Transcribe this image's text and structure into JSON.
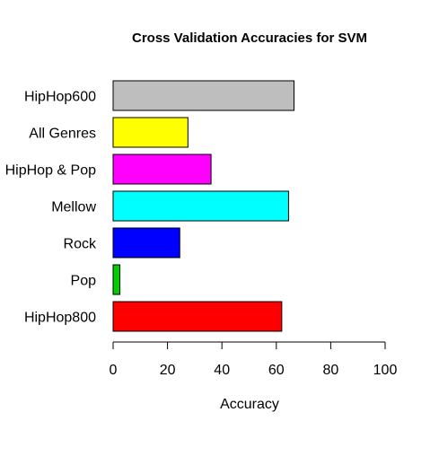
{
  "chart_data": {
    "type": "bar",
    "orientation": "horizontal",
    "title": "Cross Validation Accuracies for SVM",
    "xlabel": "Accuracy",
    "ylabel": "",
    "xlim": [
      0,
      100
    ],
    "xticks": [
      0,
      20,
      40,
      60,
      80,
      100
    ],
    "grid": false,
    "legend": "none",
    "bars": [
      {
        "category": "HipHop600",
        "value": 66.5,
        "color": "#bebebe"
      },
      {
        "category": "All Genres",
        "value": 27.5,
        "color": "#ffff00"
      },
      {
        "category": "HipHop & Pop",
        "value": 36.0,
        "color": "#ff00ff"
      },
      {
        "category": "Mellow",
        "value": 64.5,
        "color": "#00ffff"
      },
      {
        "category": "Rock",
        "value": 24.5,
        "color": "#0000ff"
      },
      {
        "category": "Pop",
        "value": 2.5,
        "color": "#00cd00"
      },
      {
        "category": "HipHop800",
        "value": 62.0,
        "color": "#ff0000"
      }
    ]
  }
}
